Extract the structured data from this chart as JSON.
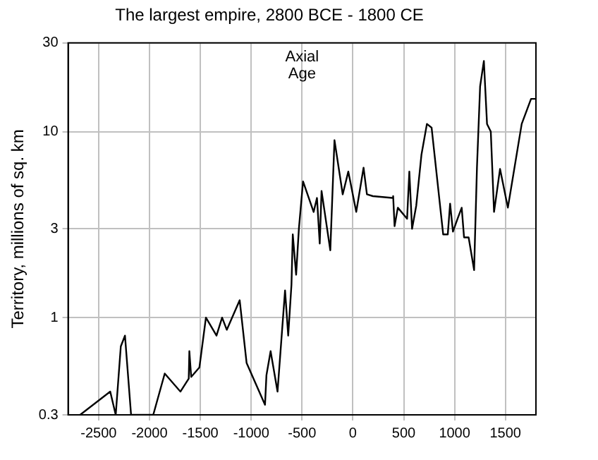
{
  "chart_data": {
    "type": "line",
    "title": "The largest empire, 2800 BCE - 1800 CE",
    "ylabel": "Territory, millions of sq. km",
    "x": [
      -2682,
      -2386,
      -2332,
      -2282,
      -2241,
      -2181,
      -1963,
      -1850,
      -1696,
      -1614,
      -1608,
      -1590,
      -1509,
      -1445,
      -1341,
      -1286,
      -1240,
      -1113,
      -1045,
      -864,
      -850,
      -809,
      -741,
      -667,
      -636,
      -604,
      -591,
      -558,
      -531,
      -490,
      -386,
      -353,
      -326,
      -308,
      -222,
      -181,
      -100,
      -45,
      33,
      105,
      138,
      196,
      387,
      396,
      410,
      442,
      533,
      555,
      582,
      623,
      674,
      728,
      774,
      888,
      933,
      956,
      984,
      1029,
      1070,
      1093,
      1138,
      1192,
      1220,
      1251,
      1288,
      1319,
      1356,
      1388,
      1447,
      1524,
      1660,
      1752,
      1800
    ],
    "series": [
      {
        "color": "#000000",
        "values": [
          0.3,
          0.4,
          0.3,
          0.7,
          0.8,
          0.3,
          0.3,
          0.5,
          0.4,
          0.47,
          0.66,
          0.48,
          0.54,
          1.0,
          0.8,
          1.0,
          0.86,
          1.24,
          0.57,
          0.34,
          0.49,
          0.66,
          0.4,
          1.4,
          0.8,
          1.5,
          2.8,
          1.7,
          3.0,
          5.4,
          3.7,
          4.4,
          2.5,
          4.8,
          2.3,
          9.0,
          4.6,
          6.1,
          3.7,
          6.4,
          4.6,
          4.5,
          4.4,
          4.5,
          3.1,
          3.9,
          3.4,
          6.1,
          3.0,
          4.0,
          7.5,
          11,
          10.5,
          2.8,
          2.8,
          4.1,
          2.9,
          3.4,
          3.9,
          2.7,
          2.7,
          1.8,
          6.4,
          17.5,
          24,
          11,
          10,
          3.7,
          6.3,
          3.9,
          11,
          15,
          15
        ]
      }
    ],
    "xlim": [
      -2800,
      1800
    ],
    "xticks": [
      -2500,
      -2000,
      -1500,
      -1000,
      -500,
      0,
      500,
      1000,
      1500
    ],
    "ylim": [
      0.3,
      30
    ],
    "yticks": [
      0.3,
      1,
      3,
      10,
      30
    ],
    "log": "y",
    "grid": true,
    "legend": false,
    "marker": "none",
    "line_style": "solid",
    "annotations": [
      "Axial\nAge"
    ]
  }
}
